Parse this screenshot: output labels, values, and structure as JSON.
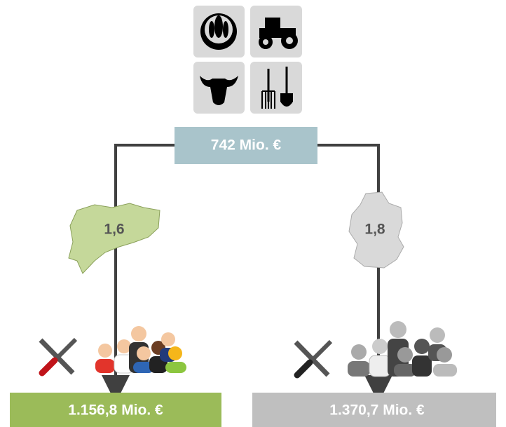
{
  "top_value": "742 Mio. €",
  "left": {
    "factor": "1,6",
    "result": "1.156,8 Mio. €"
  },
  "right": {
    "factor": "1,8",
    "result": "1.370,7 Mio. €"
  }
}
